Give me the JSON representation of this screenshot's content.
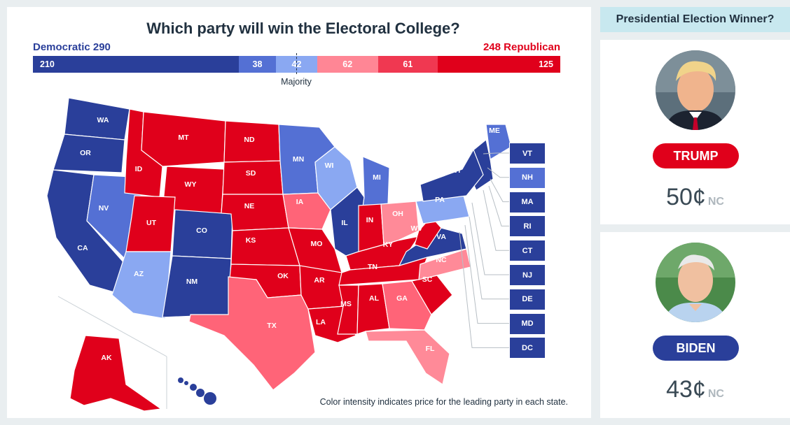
{
  "header": {
    "title": "Which party will win the Electoral College?"
  },
  "totals": {
    "democratic": "Democratic 290",
    "republican": "248 Republican"
  },
  "bar": {
    "segments": [
      {
        "label": "210",
        "value": 210,
        "color": "#2a3f9a",
        "align": "d"
      },
      {
        "label": "38",
        "value": 38,
        "color": "#5470d4",
        "align": "c"
      },
      {
        "label": "42",
        "value": 42,
        "color": "#8aa8f2",
        "align": "c"
      },
      {
        "label": "62",
        "value": 62,
        "color": "#ff8695",
        "align": "c"
      },
      {
        "label": "61",
        "value": 61,
        "color": "#f03851",
        "align": "c"
      },
      {
        "label": "125",
        "value": 125,
        "color": "#e0001b",
        "align": "r"
      }
    ],
    "majority_label": "Majority"
  },
  "colors": {
    "dem_strong": "#2a3f9a",
    "dem_mid": "#5470d4",
    "dem_light": "#8aa8f2",
    "rep_light": "#ff6478",
    "rep_mid": "#ff3a55",
    "rep_strong": "#e0001b",
    "lean_rep": "#ff8a98"
  },
  "states": [
    {
      "abbr": "WA",
      "c": "d3"
    },
    {
      "abbr": "OR",
      "c": "d3"
    },
    {
      "abbr": "CA",
      "c": "d3"
    },
    {
      "abbr": "NV",
      "c": "d2"
    },
    {
      "abbr": "ID",
      "c": "r3"
    },
    {
      "abbr": "MT",
      "c": "r3"
    },
    {
      "abbr": "WY",
      "c": "r3"
    },
    {
      "abbr": "UT",
      "c": "r3"
    },
    {
      "abbr": "AZ",
      "c": "d1"
    },
    {
      "abbr": "CO",
      "c": "d3"
    },
    {
      "abbr": "NM",
      "c": "d3"
    },
    {
      "abbr": "ND",
      "c": "r3"
    },
    {
      "abbr": "SD",
      "c": "r3"
    },
    {
      "abbr": "NE",
      "c": "r3"
    },
    {
      "abbr": "KS",
      "c": "r3"
    },
    {
      "abbr": "OK",
      "c": "r3"
    },
    {
      "abbr": "TX",
      "c": "r2"
    },
    {
      "abbr": "MN",
      "c": "d2"
    },
    {
      "abbr": "IA",
      "c": "r2"
    },
    {
      "abbr": "MO",
      "c": "r3"
    },
    {
      "abbr": "AR",
      "c": "r3"
    },
    {
      "abbr": "LA",
      "c": "r3"
    },
    {
      "abbr": "WI",
      "c": "d1"
    },
    {
      "abbr": "IL",
      "c": "d3"
    },
    {
      "abbr": "MI",
      "c": "d2"
    },
    {
      "abbr": "IN",
      "c": "r3"
    },
    {
      "abbr": "OH",
      "c": "r1"
    },
    {
      "abbr": "KY",
      "c": "r3"
    },
    {
      "abbr": "TN",
      "c": "r3"
    },
    {
      "abbr": "MS",
      "c": "r3"
    },
    {
      "abbr": "AL",
      "c": "r3"
    },
    {
      "abbr": "GA",
      "c": "r2"
    },
    {
      "abbr": "FL",
      "c": "r1"
    },
    {
      "abbr": "SC",
      "c": "r3"
    },
    {
      "abbr": "NC",
      "c": "r1"
    },
    {
      "abbr": "VA",
      "c": "d3"
    },
    {
      "abbr": "WV",
      "c": "r3"
    },
    {
      "abbr": "PA",
      "c": "d1"
    },
    {
      "abbr": "NY",
      "c": "d3"
    },
    {
      "abbr": "ME",
      "c": "d2"
    },
    {
      "abbr": "AK",
      "c": "r3"
    }
  ],
  "small_states": [
    {
      "abbr": "VT",
      "c": "d3"
    },
    {
      "abbr": "NH",
      "c": "d2"
    },
    {
      "abbr": "MA",
      "c": "d3"
    },
    {
      "abbr": "RI",
      "c": "d3"
    },
    {
      "abbr": "CT",
      "c": "d3"
    },
    {
      "abbr": "NJ",
      "c": "d3"
    },
    {
      "abbr": "DE",
      "c": "d3"
    },
    {
      "abbr": "MD",
      "c": "d3"
    },
    {
      "abbr": "DC",
      "c": "d3"
    }
  ],
  "footnote": "Color intensity indicates price for the leading party in each state.",
  "sidebar": {
    "heading": "Presidential Election Winner?",
    "candidates": [
      {
        "name": "TRUMP",
        "price": "50¢",
        "unit": "NC",
        "color": "#e0001b"
      },
      {
        "name": "BIDEN",
        "price": "43¢",
        "unit": "NC",
        "color": "#2a3f9a"
      }
    ]
  }
}
